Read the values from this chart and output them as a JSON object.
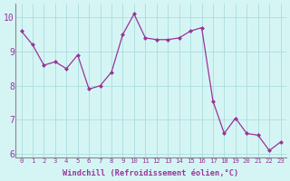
{
  "x": [
    0,
    1,
    2,
    3,
    4,
    5,
    6,
    7,
    8,
    9,
    10,
    11,
    12,
    13,
    14,
    15,
    16,
    17,
    18,
    19,
    20,
    21,
    22,
    23
  ],
  "y": [
    9.6,
    9.2,
    8.6,
    8.7,
    8.5,
    8.9,
    7.9,
    8.0,
    8.4,
    9.5,
    10.1,
    9.4,
    9.35,
    9.35,
    9.4,
    9.6,
    9.7,
    7.55,
    6.6,
    7.05,
    6.6,
    6.55,
    6.1,
    6.35
  ],
  "line_color": "#993399",
  "marker_color": "#993399",
  "bg_color": "#d5f5f5",
  "grid_color": "#aadddd",
  "axis_label_color": "#993399",
  "xlabel": "Windchill (Refroidissement éolien,°C)",
  "ylim": [
    5.9,
    10.4
  ],
  "xlim": [
    -0.5,
    23.5
  ],
  "yticks": [
    6,
    7,
    8,
    9,
    10
  ],
  "xticks": [
    0,
    1,
    2,
    3,
    4,
    5,
    6,
    7,
    8,
    9,
    10,
    11,
    12,
    13,
    14,
    15,
    16,
    17,
    18,
    19,
    20,
    21,
    22,
    23
  ]
}
